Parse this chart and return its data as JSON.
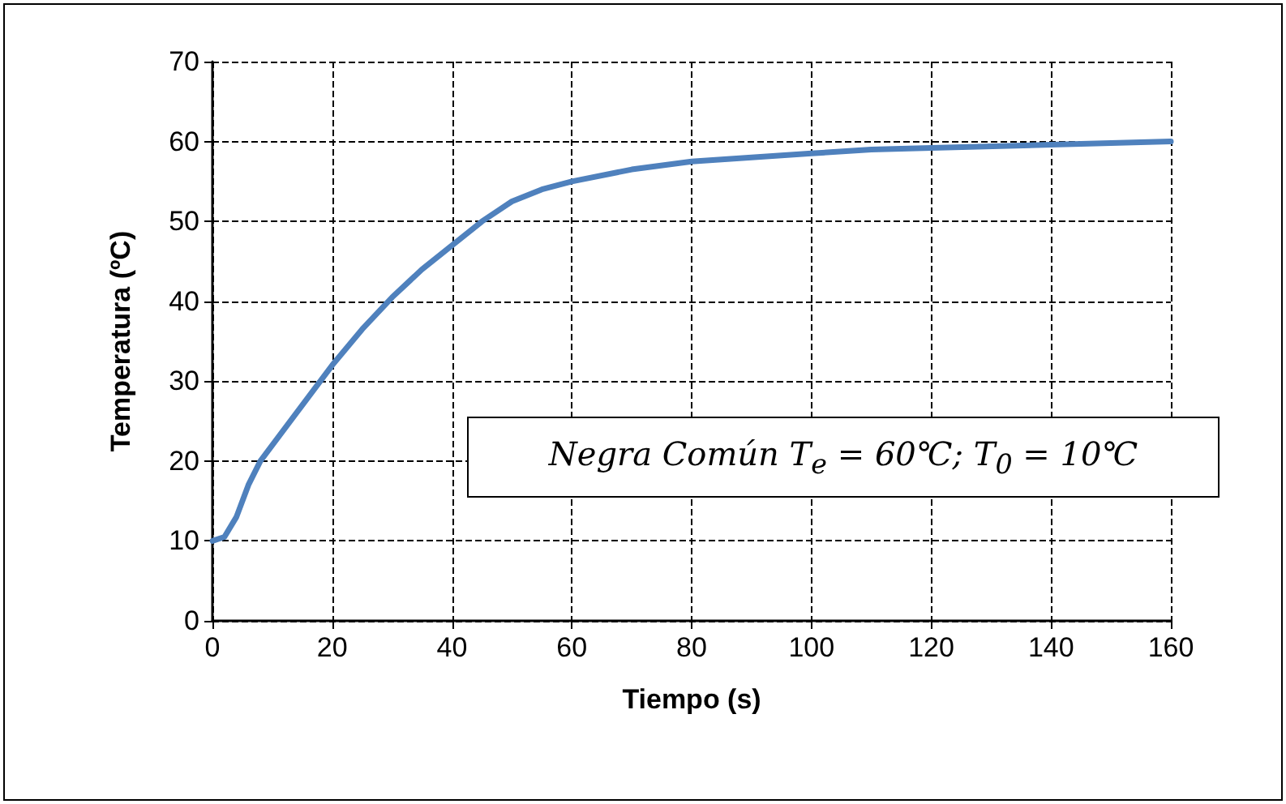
{
  "chart_data": {
    "type": "line",
    "xlabel": "Tiempo (s)",
    "ylabel": "Temperatura (ºC)",
    "annotations": [
      "Negra Común T$_{e}$ = 60℃; T$_{0}$ = 10℃"
    ],
    "series": [
      {
        "color": "#4f81bd",
        "x": [
          0,
          2,
          4,
          6,
          8,
          10,
          15,
          20,
          25,
          30,
          35,
          40,
          45,
          50,
          55,
          60,
          70,
          80,
          90,
          100,
          110,
          120,
          140,
          160
        ],
        "values": [
          10,
          10.5,
          13,
          17,
          20,
          22,
          27,
          32,
          36.5,
          40.5,
          44,
          47,
          50,
          52.5,
          54,
          55,
          56.5,
          57.5,
          58,
          58.5,
          59,
          59.2,
          59.6,
          60
        ]
      }
    ],
    "xlim": [
      0,
      160
    ],
    "xticks": [
      0,
      20,
      40,
      60,
      80,
      100,
      120,
      140,
      160
    ],
    "ylim": [
      0,
      70
    ],
    "yticks": [
      0,
      10,
      20,
      30,
      40,
      50,
      60,
      70
    ],
    "grid": true,
    "marker": "none",
    "line_style": "solid"
  }
}
